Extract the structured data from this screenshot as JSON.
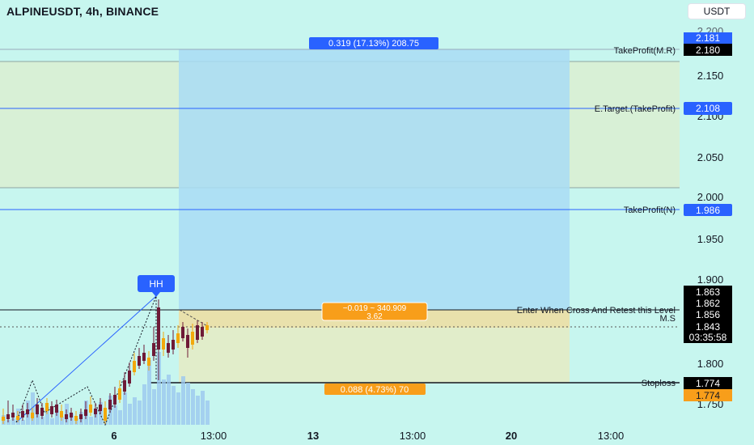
{
  "header": {
    "title": "ALPINEUSDT, 4h, BINANCE",
    "currency": "USDT"
  },
  "price_axis": {
    "ticks": [
      "2.150",
      "2.100",
      "2.050",
      "2.000",
      "1.950",
      "1.900",
      "1.800",
      "1.750"
    ],
    "clipped_top_tick": "2.200"
  },
  "time_axis": {
    "ticks": [
      "6",
      "13:00",
      "13",
      "13:00",
      "20",
      "13:00"
    ]
  },
  "levels": {
    "take_profit_mr": {
      "label": "TakeProfit(M.R)",
      "value": "2.180"
    },
    "e_target": {
      "label": "E.Target.(TakeProfit)",
      "value": "2.108"
    },
    "take_profit_n": {
      "label": "TakeProfit(N)",
      "value": "1.986"
    },
    "entry": {
      "label": "Enter When Cross And Retest this Level",
      "value": "1.856"
    },
    "ms": {
      "label": "M.S"
    },
    "stoploss": {
      "label": "Stoploss",
      "value": "1.774"
    }
  },
  "price_tags": {
    "top_blue": "2.181",
    "upper_black": "1.863",
    "mid_black": "1.862",
    "current": "1.843",
    "countdown": "03:35:58",
    "stop_orange": "1.774"
  },
  "position_tool": {
    "profit_label": "0.319 (17.13%) 208.75",
    "center_label_line1": "−0.019 ~ 340.909",
    "center_label_line2": "3.62",
    "loss_label": "0.088 (4.73%) 70"
  },
  "annotations": {
    "hh": "HH"
  },
  "colors": {
    "background": "#c7f6ef",
    "green_zone": "#d9f0d3",
    "blue_target": "#aee2f5",
    "orange": "#f89e1a",
    "blue_tag": "#2962ff",
    "candle_down": "#6e1a37",
    "candle_up": "#f2a80c",
    "line_blue": "#2962ff"
  }
}
